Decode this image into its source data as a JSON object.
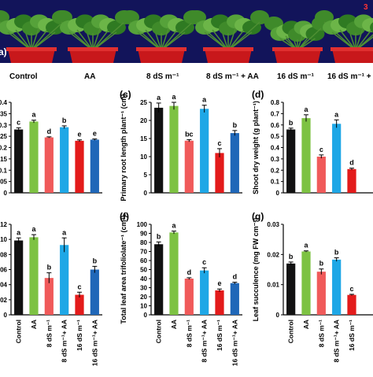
{
  "photo": {
    "panel_label": "(a)",
    "corner_label": "3",
    "labels": [
      "Control",
      "AA",
      "8 dS m⁻¹",
      "8 dS m⁻¹ + AA",
      "16 dS m⁻¹",
      "16 dS m⁻¹ +"
    ]
  },
  "colors": {
    "Control": "#111111",
    "AA": "#7dc242",
    "8 dS m-1": "#f05a5a",
    "8 dS m-1 + AA": "#1ea7e6",
    "16 dS m-1": "#e31b1b",
    "16 dS m-1 + AA": "#1f67b8",
    "photo_bg": "#12145a",
    "pot_red": "#c8181b"
  },
  "chart_data": [
    {
      "id": "b",
      "type": "bar",
      "panel_label": "",
      "ylabel": "",
      "ylim": [
        0,
        0.8
      ],
      "yticks": [
        "0",
        "0.05",
        "0.1",
        "0.15",
        "0.2",
        "0.25",
        "0.3",
        "0.35",
        "0.4"
      ],
      "categories": [
        "Control",
        "AA",
        "8 dS m-1",
        "8 dS m-1 + AA",
        "16 dS m-1",
        "16 dS m-1 + AA"
      ],
      "values": [
        0.56,
        0.63,
        0.49,
        0.58,
        0.46,
        0.47
      ],
      "errors": [
        0.015,
        0.012,
        0.005,
        0.012,
        0.008,
        0.006
      ],
      "letters": [
        "c",
        "a",
        "d",
        "b",
        "e",
        "e"
      ]
    },
    {
      "id": "c",
      "type": "bar",
      "panel_label": "(c)",
      "ylabel": "Primary root length plant⁻¹ (cm)",
      "ylim": [
        0,
        25
      ],
      "yticks": [
        "0",
        "5",
        "10",
        "15",
        "20",
        "25"
      ],
      "categories": [
        "Control",
        "AA",
        "8 dS m-1",
        "8 dS m-1 + AA",
        "16 dS m-1",
        "16 dS m-1 + AA"
      ],
      "values": [
        23.5,
        24.0,
        14.4,
        23.2,
        11.0,
        16.5
      ],
      "errors": [
        1.3,
        1.0,
        0.3,
        1.0,
        1.2,
        0.7
      ],
      "letters": [
        "a",
        "a",
        "bc",
        "a",
        "c",
        "b"
      ]
    },
    {
      "id": "d",
      "type": "bar",
      "panel_label": "(d)",
      "ylabel": "Shoot dry weight (g plant⁻¹)",
      "ylim": [
        0,
        0.8
      ],
      "yticks": [
        "0",
        "0.1",
        "0.2",
        "0.3",
        "0.4",
        "0.5",
        "0.6",
        "0.7",
        "0.8"
      ],
      "categories": [
        "Control",
        "AA",
        "8 dS m-1",
        "8 dS m-1 + AA",
        "16 dS m-1",
        "16 dS m-1 + AA"
      ],
      "values": [
        0.56,
        0.66,
        0.32,
        0.61,
        0.21,
        0
      ],
      "errors": [
        0.012,
        0.03,
        0.015,
        0.035,
        0.008,
        0
      ],
      "letters": [
        "b",
        "a",
        "c",
        "a",
        "d",
        ""
      ]
    },
    {
      "id": "e",
      "type": "bar",
      "panel_label": "",
      "ylabel": "",
      "ylim": [
        0,
        0.14
      ],
      "yticks": [
        "0",
        "0.02",
        "0.04",
        "0.06",
        "0.08",
        "0.10",
        "0.12"
      ],
      "categories": [
        "Control",
        "AA",
        "8 dS m-1",
        "8 dS m-1 + AA",
        "16 dS m-1",
        "16 dS m-1 + AA"
      ],
      "tick_labels": [
        "Control",
        "AA",
        "8 dS m⁻¹",
        "8 dS m⁻¹+ AA",
        "16 dS m⁻¹",
        "16 dS m⁻¹+ AA"
      ],
      "values": [
        0.115,
        0.12,
        0.057,
        0.108,
        0.031,
        0.07
      ],
      "errors": [
        0.004,
        0.004,
        0.008,
        0.011,
        0.004,
        0.005
      ],
      "letters": [
        "a",
        "a",
        "b",
        "a",
        "c",
        "b"
      ]
    },
    {
      "id": "f",
      "type": "bar",
      "panel_label": "(f)",
      "ylabel": "Total leaf area trifoliolate⁻¹ (cm²)",
      "ylim": [
        0,
        100
      ],
      "yticks": [
        "0",
        "10",
        "20",
        "30",
        "40",
        "50",
        "60",
        "70",
        "80",
        "90",
        "100"
      ],
      "categories": [
        "Control",
        "AA",
        "8 dS m-1",
        "8 dS m-1 + AA",
        "16 dS m-1",
        "16 dS m-1 + AA"
      ],
      "tick_labels": [
        "Control",
        "AA",
        "8 dS m⁻¹",
        "8 dS m⁻¹+ AA",
        "16 dS m⁻¹",
        "16 dS m⁻¹+ AA"
      ],
      "values": [
        78,
        91,
        40,
        49,
        27,
        35
      ],
      "errors": [
        2.5,
        1.5,
        1.0,
        3.0,
        1.5,
        1.0
      ],
      "letters": [
        "b",
        "a",
        "d",
        "c",
        "e",
        "d"
      ]
    },
    {
      "id": "g",
      "type": "bar",
      "panel_label": "(g)",
      "ylabel": "Leaf succulence (mg FW cm⁻²)",
      "ylim": [
        0,
        0.03
      ],
      "yticks": [
        "0",
        "0.01",
        "0.02",
        "0.03"
      ],
      "categories": [
        "Control",
        "AA",
        "8 dS m-1",
        "8 dS m-1 + AA",
        "16 dS m-1",
        "16 dS m-1 + AA"
      ],
      "tick_labels": [
        "Control",
        "AA",
        "8 dS m⁻¹",
        "8 dS m⁻¹+ AA",
        "16 dS m⁻¹",
        ""
      ],
      "values": [
        0.017,
        0.021,
        0.0143,
        0.0183,
        0.0066,
        0
      ],
      "errors": [
        0.0005,
        0.0002,
        0.0009,
        0.0006,
        0.0002,
        0
      ],
      "letters": [
        "b",
        "a",
        "b",
        "b",
        "c",
        ""
      ]
    }
  ]
}
